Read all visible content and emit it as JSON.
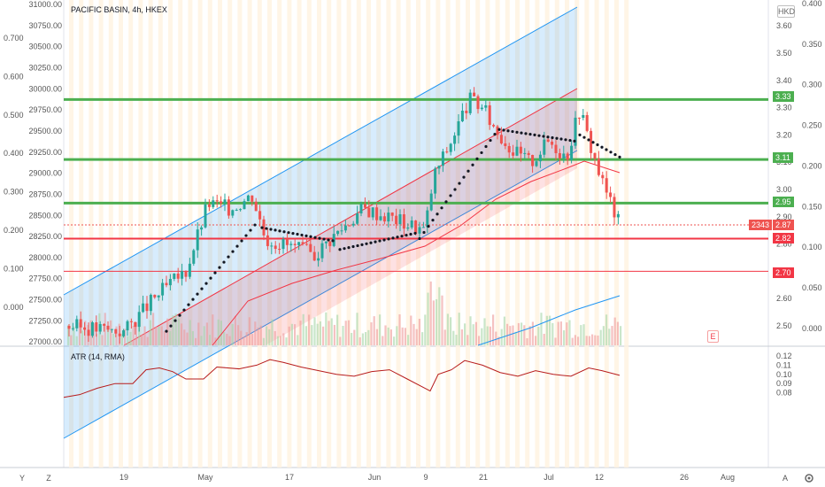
{
  "header": {
    "title": "PACIFIC BASIN, 4h, HKEX",
    "currency": "HKD"
  },
  "left_axis_outer": {
    "ticks": [
      "0.700",
      "0.600",
      "0.500",
      "0.400",
      "0.300",
      "0.200",
      "0.100",
      "0.000"
    ],
    "values": [
      0.7,
      0.6,
      0.5,
      0.4,
      0.3,
      0.2,
      0.1,
      0.0
    ]
  },
  "left_axis_inner": {
    "ticks": [
      "31000.00",
      "30750.00",
      "30500.00",
      "30250.00",
      "30000.00",
      "29750.00",
      "29500.00",
      "29250.00",
      "29000.00",
      "28750.00",
      "28500.00",
      "28250.00",
      "28000.00",
      "27750.00",
      "27500.00",
      "27250.00",
      "27000.00"
    ],
    "values": [
      31000,
      30750,
      30500,
      30250,
      30000,
      29750,
      29500,
      29250,
      29000,
      28750,
      28500,
      28250,
      28000,
      27750,
      27500,
      27250,
      27000
    ]
  },
  "right_axis_price": {
    "ticks": [
      "3.60",
      "3.50",
      "3.40",
      "3.30",
      "3.20",
      "3.10",
      "3.00",
      "2.90",
      "2.80",
      "2.60",
      "2.50"
    ],
    "values": [
      3.6,
      3.5,
      3.4,
      3.3,
      3.2,
      3.1,
      3.0,
      2.9,
      2.8,
      2.6,
      2.5
    ]
  },
  "right_axis_outer": {
    "ticks": [
      "0.400",
      "0.350",
      "0.300",
      "0.250",
      "0.200",
      "0.150",
      "0.100",
      "0.050",
      "0.000"
    ],
    "values": [
      0.4,
      0.35,
      0.3,
      0.25,
      0.2,
      0.15,
      0.1,
      0.05,
      0.0
    ]
  },
  "atr": {
    "label": "ATR (14, RMA)",
    "ticks": [
      "0.12",
      "0.11",
      "0.10",
      "0.09",
      "0.08"
    ],
    "values": [
      0.12,
      0.11,
      0.1,
      0.09,
      0.08
    ]
  },
  "time_axis": {
    "labels": [
      "19",
      "May",
      "17",
      "Jun",
      "9",
      "21",
      "Jul",
      "12",
      "26",
      "Aug"
    ]
  },
  "price_tags": {
    "level_3_33": "3.33",
    "level_3_11": "3.11",
    "level_2_95": "2.95",
    "current_index": "2343",
    "current_price": "2.87",
    "level_2_82": "2.82",
    "level_2_70": "2.70"
  },
  "controls": {
    "timezone_icon": "Y",
    "magnet_icon": "Z",
    "scale_auto": "A",
    "settings_icon": "gear-icon",
    "event_marker": "E"
  },
  "colors": {
    "up": "#26a69a",
    "down": "#ef5350",
    "support_line": "#4caf50",
    "resistance_line": "#f23645",
    "channel_blue": "#2196f3",
    "channel_red": "#f23645",
    "sar": "#131722",
    "atr_line": "#b71c1c"
  }
}
